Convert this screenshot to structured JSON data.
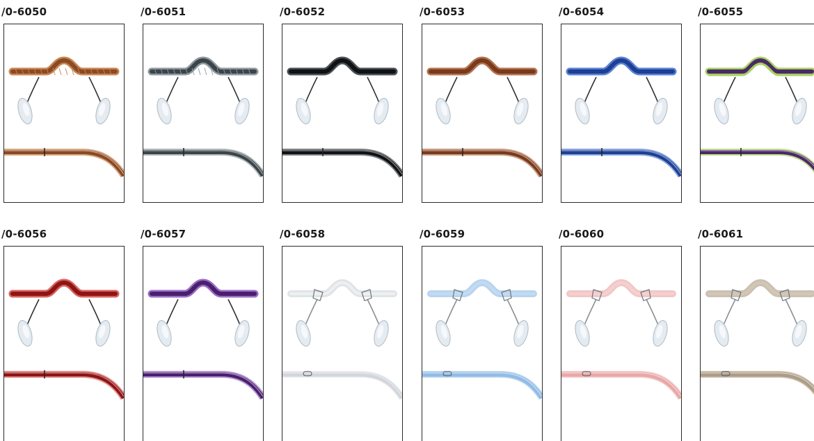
{
  "products": [
    {
      "code": "/0-6050",
      "color": "#8a4a22",
      "highlight": "#c98552",
      "pattern": "tortoise"
    },
    {
      "code": "/0-6051",
      "color": "#3b4448",
      "highlight": "#8f9aa0",
      "pattern": "marble"
    },
    {
      "code": "/0-6052",
      "color": "#101214",
      "highlight": "#4a5056",
      "pattern": "solid"
    },
    {
      "code": "/0-6053",
      "color": "#7a3a1c",
      "highlight": "#b27350",
      "pattern": "solid"
    },
    {
      "code": "/0-6054",
      "color": "#1e3f94",
      "highlight": "#5a82d2",
      "pattern": "solid"
    },
    {
      "code": "/0-6055",
      "color": "#4a2a66",
      "highlight": "#a8d060",
      "pattern": "two-tone"
    },
    {
      "code": "/0-6056",
      "color": "#8f1414",
      "highlight": "#d86060",
      "pattern": "solid"
    },
    {
      "code": "/0-6057",
      "color": "#4a1f6e",
      "highlight": "#9a6cc4",
      "pattern": "solid"
    },
    {
      "code": "/0-6058",
      "color": "#c9ced3",
      "highlight": "#eef1f3",
      "pattern": "clear"
    },
    {
      "code": "/0-6059",
      "color": "#7fb0e2",
      "highlight": "#c4dcf2",
      "pattern": "clear"
    },
    {
      "code": "/0-6060",
      "color": "#e39a9a",
      "highlight": "#f6cfcf",
      "pattern": "clear"
    },
    {
      "code": "/0-6061",
      "color": "#9e8e78",
      "highlight": "#d4c7b2",
      "pattern": "clear"
    }
  ]
}
